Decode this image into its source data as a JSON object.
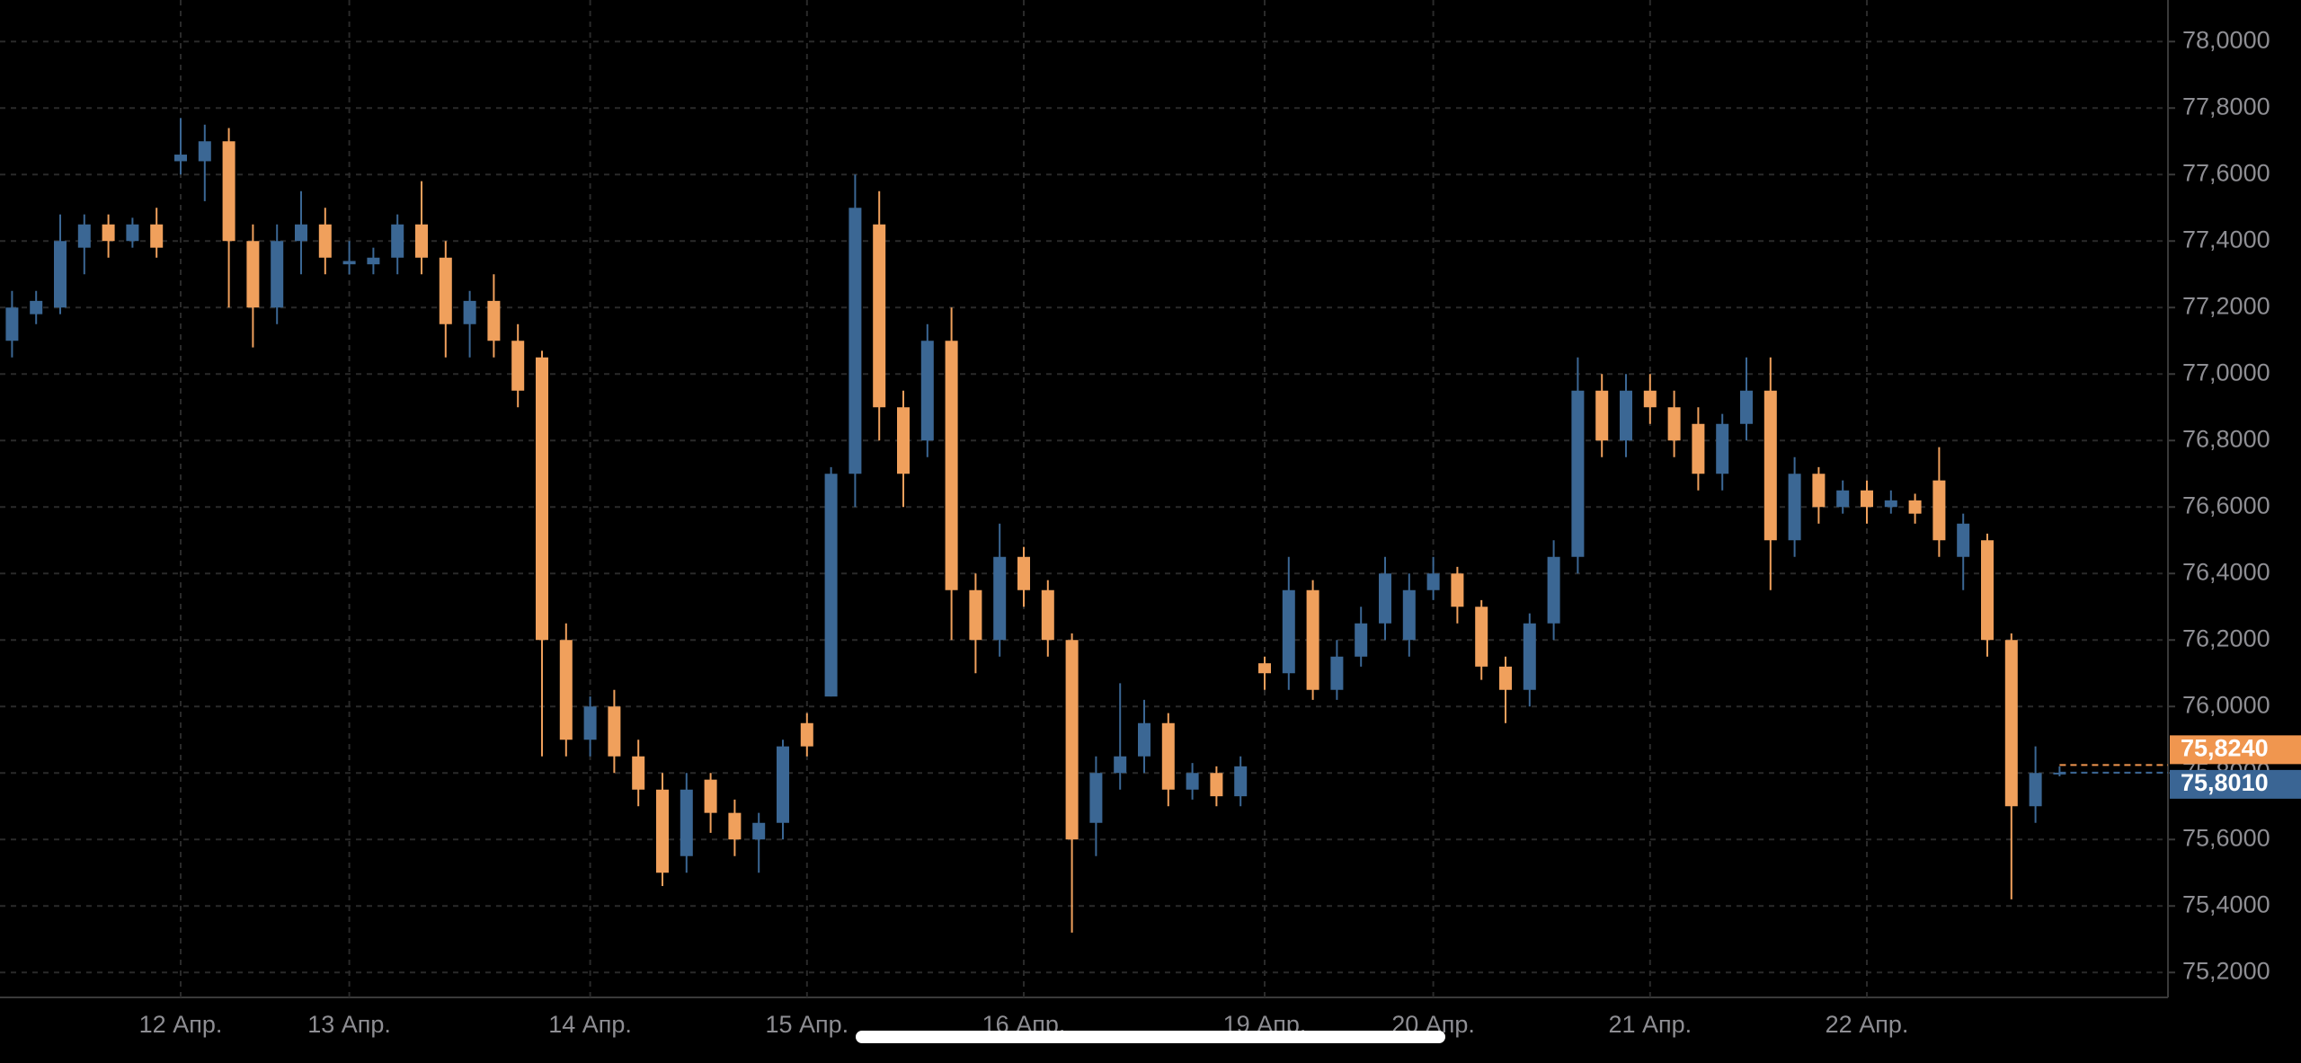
{
  "chart_data": {
    "type": "candlestick",
    "categories": [
      null,
      null,
      null,
      null,
      null,
      null,
      null,
      "12 Апр.",
      null,
      null,
      null,
      null,
      null,
      null,
      "13 Апр.",
      null,
      null,
      null,
      null,
      null,
      null,
      null,
      null,
      null,
      "14 Апр.",
      null,
      null,
      null,
      null,
      null,
      null,
      null,
      null,
      "15 Апр.",
      null,
      null,
      null,
      null,
      null,
      null,
      null,
      null,
      "16 Апр.",
      null,
      null,
      null,
      null,
      null,
      null,
      null,
      null,
      null,
      "19 Апр.",
      null,
      null,
      null,
      null,
      null,
      null,
      "20 Апр.",
      null,
      null,
      null,
      null,
      null,
      null,
      null,
      null,
      "21 Апр.",
      null,
      null,
      null,
      null,
      null,
      null,
      null,
      null,
      "22 Апр.",
      null,
      null,
      null,
      null,
      null,
      null,
      null,
      null
    ],
    "open": [
      77.1,
      77.18,
      77.2,
      77.38,
      77.45,
      77.4,
      77.45,
      77.64,
      77.64,
      77.7,
      77.4,
      77.2,
      77.4,
      77.45,
      77.33,
      77.33,
      77.35,
      77.45,
      77.35,
      77.15,
      77.22,
      77.1,
      77.05,
      76.2,
      75.9,
      76.0,
      75.85,
      75.75,
      75.55,
      75.78,
      75.68,
      75.6,
      75.65,
      75.95,
      76.03,
      76.7,
      77.45,
      76.9,
      76.8,
      77.1,
      76.35,
      76.2,
      76.45,
      76.35,
      76.2,
      75.65,
      75.8,
      75.85,
      75.95,
      75.75,
      75.8,
      75.73,
      76.13,
      76.1,
      76.35,
      76.05,
      76.15,
      76.25,
      76.2,
      76.35,
      76.4,
      76.3,
      76.12,
      76.05,
      76.25,
      76.45,
      76.95,
      76.8,
      76.95,
      76.9,
      76.85,
      76.7,
      76.85,
      76.95,
      76.5,
      76.7,
      76.6,
      76.65,
      76.6,
      76.62,
      76.68,
      76.45,
      76.5,
      76.2,
      75.7,
      75.8
    ],
    "high": [
      77.25,
      77.25,
      77.48,
      77.48,
      77.48,
      77.47,
      77.5,
      77.77,
      77.75,
      77.74,
      77.45,
      77.45,
      77.55,
      77.5,
      77.4,
      77.38,
      77.48,
      77.58,
      77.4,
      77.25,
      77.3,
      77.15,
      77.07,
      76.25,
      76.03,
      76.05,
      75.9,
      75.8,
      75.8,
      75.8,
      75.72,
      75.68,
      75.9,
      75.98,
      76.72,
      77.6,
      77.55,
      76.95,
      77.15,
      77.2,
      76.4,
      76.55,
      76.48,
      76.38,
      76.22,
      75.85,
      76.07,
      76.02,
      75.98,
      75.83,
      75.82,
      75.85,
      76.15,
      76.45,
      76.38,
      76.2,
      76.3,
      76.45,
      76.4,
      76.45,
      76.42,
      76.32,
      76.15,
      76.28,
      76.5,
      77.05,
      77.0,
      77.0,
      77.0,
      76.95,
      76.9,
      76.88,
      77.05,
      77.05,
      76.75,
      76.72,
      76.68,
      76.68,
      76.65,
      76.64,
      76.78,
      76.58,
      76.52,
      76.22,
      75.88,
      75.82
    ],
    "low": [
      77.05,
      77.15,
      77.18,
      77.3,
      77.35,
      77.38,
      77.35,
      77.6,
      77.52,
      77.2,
      77.08,
      77.15,
      77.3,
      77.3,
      77.3,
      77.3,
      77.3,
      77.3,
      77.05,
      77.05,
      77.05,
      76.9,
      75.85,
      75.85,
      75.85,
      75.8,
      75.7,
      75.46,
      75.5,
      75.62,
      75.55,
      75.5,
      75.6,
      75.85,
      76.03,
      76.6,
      76.8,
      76.6,
      76.75,
      76.2,
      76.1,
      76.15,
      76.3,
      76.15,
      75.32,
      75.55,
      75.75,
      75.8,
      75.7,
      75.72,
      75.7,
      75.7,
      76.05,
      76.05,
      76.02,
      76.02,
      76.12,
      76.2,
      76.15,
      76.32,
      76.25,
      76.08,
      75.95,
      76.0,
      76.2,
      76.4,
      76.75,
      76.75,
      76.85,
      76.75,
      76.65,
      76.65,
      76.8,
      76.35,
      76.45,
      76.55,
      76.58,
      76.55,
      76.58,
      76.55,
      76.45,
      76.35,
      76.15,
      75.42,
      75.65,
      75.79
    ],
    "close": [
      77.2,
      77.22,
      77.4,
      77.45,
      77.4,
      77.45,
      77.38,
      77.66,
      77.7,
      77.4,
      77.2,
      77.4,
      77.45,
      77.35,
      77.34,
      77.35,
      77.45,
      77.35,
      77.15,
      77.22,
      77.1,
      76.95,
      76.2,
      75.9,
      76.0,
      75.85,
      75.75,
      75.5,
      75.75,
      75.68,
      75.6,
      75.65,
      75.88,
      75.88,
      76.7,
      77.5,
      76.9,
      76.7,
      77.1,
      76.35,
      76.2,
      76.45,
      76.35,
      76.2,
      75.6,
      75.8,
      75.85,
      75.95,
      75.75,
      75.8,
      75.73,
      75.82,
      76.1,
      76.35,
      76.05,
      76.15,
      76.25,
      76.4,
      76.35,
      76.4,
      76.3,
      76.12,
      76.05,
      76.25,
      76.45,
      76.95,
      76.8,
      76.95,
      76.9,
      76.8,
      76.7,
      76.85,
      76.95,
      76.5,
      76.7,
      76.6,
      76.65,
      76.6,
      76.62,
      76.58,
      76.5,
      76.55,
      76.2,
      75.7,
      75.8,
      75.801
    ],
    "up_color": "#3b6794",
    "down_color": "#f0a05c",
    "ylim": [
      75.125,
      78.125
    ],
    "yticks": [
      {
        "value": 75.2,
        "label": "75,2000"
      },
      {
        "value": 75.4,
        "label": "75,4000"
      },
      {
        "value": 75.6,
        "label": "75,6000"
      },
      {
        "value": 75.8,
        "label": "75,8000"
      },
      {
        "value": 76.0,
        "label": "76,0000"
      },
      {
        "value": 76.2,
        "label": "76,2000"
      },
      {
        "value": 76.4,
        "label": "76,4000"
      },
      {
        "value": 76.6,
        "label": "76,6000"
      },
      {
        "value": 76.8,
        "label": "76,8000"
      },
      {
        "value": 77.0,
        "label": "77,0000"
      },
      {
        "value": 77.2,
        "label": "77,2000"
      },
      {
        "value": 77.4,
        "label": "77,4000"
      },
      {
        "value": 77.6,
        "label": "77,6000"
      },
      {
        "value": 77.8,
        "label": "77,8000"
      },
      {
        "value": 78.0,
        "label": "78,0000"
      }
    ],
    "grid": true,
    "price_tags": [
      {
        "value": 75.824,
        "label": "75,8240",
        "color": "#f0964f"
      },
      {
        "value": 75.801,
        "label": "75,8010",
        "color": "#3a6594"
      }
    ]
  }
}
